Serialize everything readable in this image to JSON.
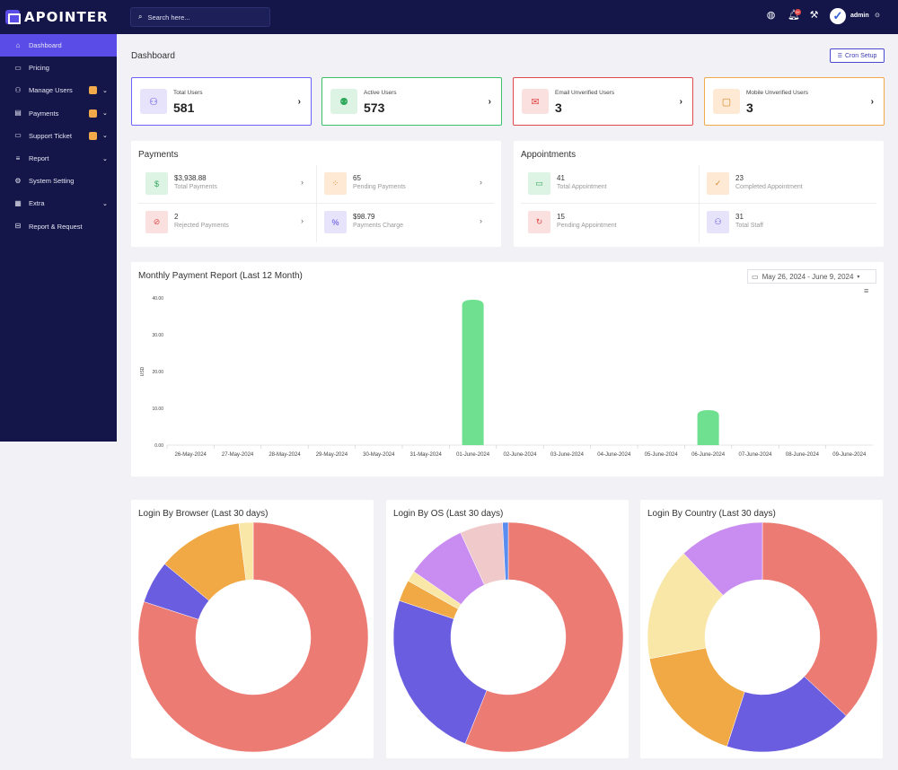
{
  "app": {
    "logo_text": "APOINTER"
  },
  "sidebar": {
    "items": [
      {
        "label": "Dashboard",
        "icon": "home-icon",
        "glyph": "⌂",
        "active": true
      },
      {
        "label": "Pricing",
        "icon": "pricing-icon",
        "glyph": "▭"
      },
      {
        "label": "Manage Users",
        "icon": "users-icon",
        "glyph": "⚇",
        "badge": true,
        "chevron": true
      },
      {
        "label": "Payments",
        "icon": "payments-icon",
        "glyph": "▤",
        "badge": true,
        "chevron": true
      },
      {
        "label": "Support Ticket",
        "icon": "ticket-icon",
        "glyph": "▭",
        "badge": true,
        "chevron": true
      },
      {
        "label": "Report",
        "icon": "report-icon",
        "glyph": "≡",
        "chevron": true
      },
      {
        "label": "System Setting",
        "icon": "settings-icon",
        "glyph": "⚙"
      },
      {
        "label": "Extra",
        "icon": "extra-icon",
        "glyph": "▦",
        "chevron": true
      },
      {
        "label": "Report & Request",
        "icon": "request-icon",
        "glyph": "⊟"
      }
    ]
  },
  "topbar": {
    "search_placeholder": "Search here...",
    "notif_count": "9+",
    "user_name": "admin"
  },
  "header": {
    "title": "Dashboard",
    "cron_label": "Cron Setup"
  },
  "stats": [
    {
      "label": "Total Users",
      "value": "581",
      "color": "#6c63ff",
      "bg": "#e6e3fb",
      "fg": "#5a4ce6",
      "icon": "users-icon",
      "glyph": "⚇"
    },
    {
      "label": "Active Users",
      "value": "573",
      "color": "#3bc16a",
      "bg": "#ddf3e4",
      "fg": "#2ea85a",
      "icon": "user-check-icon",
      "glyph": "⚉"
    },
    {
      "label": "Email Unverified Users",
      "value": "3",
      "color": "#e04a4a",
      "bg": "#fbe0e0",
      "fg": "#e04a4a",
      "icon": "mail-icon",
      "glyph": "✉"
    },
    {
      "label": "Mobile Unverified Users",
      "value": "3",
      "color": "#f2a94a",
      "bg": "#fde9d4",
      "fg": "#e0882a",
      "icon": "mobile-off-icon",
      "glyph": "▢"
    }
  ],
  "payments": {
    "title": "Payments",
    "items": [
      {
        "value": "$3,938.88",
        "label": "Total Payments",
        "bg": "#ddf3e4",
        "fg": "#2ea85a",
        "icon": "money-icon",
        "glyph": "$"
      },
      {
        "value": "65",
        "label": "Pending Payments",
        "bg": "#fde9d4",
        "fg": "#e0882a",
        "icon": "spinner-icon",
        "glyph": "⁘"
      },
      {
        "value": "2",
        "label": "Rejected Payments",
        "bg": "#fbe0e0",
        "fg": "#e04a4a",
        "icon": "ban-icon",
        "glyph": "⊘"
      },
      {
        "value": "$98.79",
        "label": "Payments Charge",
        "bg": "#e6e3fb",
        "fg": "#5a4ce6",
        "icon": "percent-icon",
        "glyph": "%"
      }
    ]
  },
  "appointments": {
    "title": "Appointments",
    "items": [
      {
        "value": "41",
        "label": "Total Appointment",
        "bg": "#ddf3e4",
        "fg": "#2ea85a",
        "icon": "calendar-icon",
        "glyph": "▭"
      },
      {
        "value": "23",
        "label": "Completed Appointment",
        "bg": "#fde9d4",
        "fg": "#e0882a",
        "icon": "check-icon",
        "glyph": "✓"
      },
      {
        "value": "15",
        "label": "Pending Appointment",
        "bg": "#fbe0e0",
        "fg": "#e04a4a",
        "icon": "refresh-icon",
        "glyph": "↻"
      },
      {
        "value": "31",
        "label": "Total Staff",
        "bg": "#e6e3fb",
        "fg": "#5a4ce6",
        "icon": "staff-icon",
        "glyph": "⚇"
      }
    ]
  },
  "payment_report": {
    "title": "Monthly Payment Report (Last 12 Month)",
    "date_range": "May 26, 2024 - June 9, 2024"
  },
  "browser_chart": {
    "title": "Login By Browser (Last 30 days)"
  },
  "os_chart": {
    "title": "Login By OS (Last 30 days)"
  },
  "country_chart": {
    "title": "Login By Country (Last 30 days)"
  },
  "chart_data": [
    {
      "type": "bar",
      "title": "Monthly Payment Report (Last 12 Month)",
      "ylabel": "USD",
      "ylim": [
        0,
        40
      ],
      "y_ticks": [
        "0.00",
        "10.00",
        "20.00",
        "30.00",
        "40.00"
      ],
      "categories": [
        "26-May-2024",
        "27-May-2024",
        "28-May-2024",
        "29-May-2024",
        "30-May-2024",
        "31-May-2024",
        "01-June-2024",
        "02-June-2024",
        "03-June-2024",
        "04-June-2024",
        "05-June-2024",
        "06-June-2024",
        "07-June-2024",
        "08-June-2024",
        "09-June-2024"
      ],
      "values": [
        0,
        0,
        0,
        0,
        0,
        0,
        39.5,
        0,
        0,
        0,
        0,
        9.5,
        0,
        0,
        0
      ],
      "color": "#6ee08f"
    },
    {
      "type": "pie",
      "title": "Login By Browser (Last 30 days)",
      "values": [
        80,
        6,
        12,
        2
      ],
      "colors": [
        "#ec7b73",
        "#6b5de0",
        "#f0a944",
        "#f9e7a8"
      ]
    },
    {
      "type": "pie",
      "title": "Login By OS (Last 30 days)",
      "values": [
        56,
        24,
        3,
        1.5,
        8.5,
        6,
        0.8
      ],
      "colors": [
        "#ec7b73",
        "#6b5de0",
        "#f0a944",
        "#f9e7a8",
        "#c98cf0",
        "#f0c9cb",
        "#5b8cf0"
      ]
    },
    {
      "type": "pie",
      "title": "Login By Country (Last 30 days)",
      "values": [
        37,
        18,
        17,
        16,
        12
      ],
      "colors": [
        "#ec7b73",
        "#6b5de0",
        "#f0a944",
        "#f9e7a8",
        "#c98cf0"
      ]
    }
  ]
}
